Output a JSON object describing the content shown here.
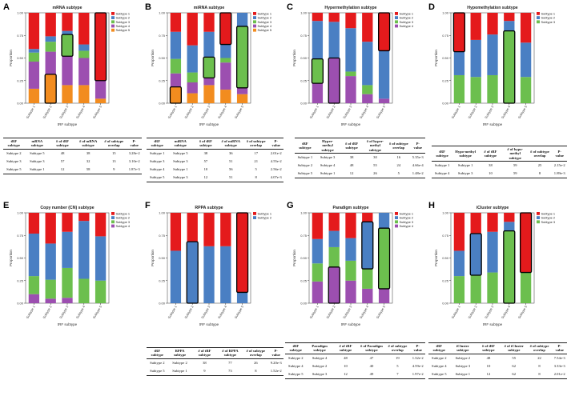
{
  "colors": {
    "Subtype 1": "#e41a1c",
    "Subtype 2": "#4a7fc3",
    "Subtype 3": "#6cbf4e",
    "Subtype 4": "#9c4fb0",
    "Subtype 5": "#f28c1f"
  },
  "chart_data": [
    {
      "letter": "A",
      "type": "bar",
      "stacked": true,
      "title": "mRNA subtype",
      "xlabel": "tRF subtype",
      "ylabel": "Proportion",
      "categories": [
        "Subtype 1",
        "Subtype 2",
        "Subtype 3",
        "Subtype 4",
        "Subtype 5"
      ],
      "yticks": [
        "0.00",
        "0.25",
        "0.50",
        "0.75",
        "1.00"
      ],
      "ylim": [
        0,
        1
      ],
      "series": [
        {
          "name": "Subtype 5",
          "values": [
            0.16,
            0.32,
            0.2,
            0.2,
            0.05
          ]
        },
        {
          "name": "Subtype 4",
          "values": [
            0.3,
            0.25,
            0.32,
            0.3,
            0.2
          ]
        },
        {
          "name": "Subtype 3",
          "values": [
            0.1,
            0.11,
            0.24,
            0.08,
            0.0
          ]
        },
        {
          "name": "Subtype 2",
          "values": [
            0.04,
            0.06,
            0.04,
            0.07,
            0.0
          ]
        },
        {
          "name": "Subtype 1",
          "values": [
            0.4,
            0.26,
            0.2,
            0.35,
            0.75
          ]
        }
      ],
      "highlights": [
        {
          "category": "Subtype 2",
          "series": "Subtype 5"
        },
        {
          "category": "Subtype 3",
          "series": "Subtype 3"
        },
        {
          "category": "Subtype 5",
          "series": "Subtype 1"
        }
      ],
      "legend": [
        "Subtype 1",
        "Subtype 2",
        "Subtype 3",
        "Subtype 4",
        "Subtype 5"
      ],
      "table": {
        "headers": [
          "tRF subtype",
          "mRNA subtype",
          "# of tRF subtype",
          "# of mRNA subtype",
          "# of subtype overlap",
          "P-value"
        ],
        "rows": [
          [
            "Subtype 2",
            "Subtype 5",
            "48",
            "38",
            "15",
            "3.28e-2"
          ],
          [
            "Subtype 3",
            "Subtype 3",
            "57",
            "32",
            "13",
            "3.10e-2"
          ],
          [
            "Subtype 5",
            "Subtype 1",
            "12",
            "58",
            "9",
            "1.87e-3"
          ]
        ]
      }
    },
    {
      "letter": "B",
      "type": "bar",
      "stacked": true,
      "title": "miRNA subtype",
      "xlabel": "tRF subtype",
      "ylabel": "Proportion",
      "categories": [
        "Subtype 1",
        "Subtype 2",
        "Subtype 3",
        "Subtype 4",
        "Subtype 5"
      ],
      "yticks": [
        "0.00",
        "0.25",
        "0.50",
        "0.75",
        "1.00"
      ],
      "ylim": [
        0,
        1
      ],
      "series": [
        {
          "name": "Subtype 5",
          "values": [
            0.18,
            0.11,
            0.2,
            0.15,
            0.1
          ]
        },
        {
          "name": "Subtype 4",
          "values": [
            0.15,
            0.12,
            0.08,
            0.3,
            0.07
          ]
        },
        {
          "name": "Subtype 3",
          "values": [
            0.16,
            0.11,
            0.23,
            0.05,
            0.68
          ]
        },
        {
          "name": "Subtype 2",
          "values": [
            0.3,
            0.3,
            0.28,
            0.15,
            0.15
          ]
        },
        {
          "name": "Subtype 1",
          "values": [
            0.21,
            0.36,
            0.21,
            0.35,
            0.0
          ]
        }
      ],
      "highlights": [
        {
          "category": "Subtype 1",
          "series": "Subtype 5"
        },
        {
          "category": "Subtype 3",
          "series": "Subtype 3"
        },
        {
          "category": "Subtype 4",
          "series": "Subtype 1"
        },
        {
          "category": "Subtype 5",
          "series": "Subtype 3"
        }
      ],
      "legend": [
        "Subtype 1",
        "Subtype 2",
        "Subtype 3",
        "Subtype 4",
        "Subtype 5"
      ],
      "table": {
        "headers": [
          "tRF subtype",
          "miRNA subtype",
          "# of tRF subtype",
          "# of miRNA subtype",
          "# of subtype overlap",
          "P-value"
        ],
        "rows": [
          [
            "Subtype 1",
            "Subtype 5",
            "38",
            "36",
            "17",
            "2.01e-2"
          ],
          [
            "Subtype 3",
            "Subtype 3",
            "57",
            "51",
            "21",
            "4.55e-2"
          ],
          [
            "Subtype 4",
            "Subtype 1",
            "10",
            "56",
            "5",
            "2.56e-2"
          ],
          [
            "Subtype 5",
            "Subtype 3",
            "12",
            "51",
            "8",
            "4.07e-3"
          ]
        ]
      }
    },
    {
      "letter": "C",
      "type": "bar",
      "stacked": true,
      "title": "Hypermethylation subtype",
      "xlabel": "tRF subtype",
      "ylabel": "Proportion",
      "categories": [
        "Subtype 1",
        "Subtype 2",
        "Subtype 3",
        "Subtype 4",
        "Subtype 5"
      ],
      "yticks": [
        "0.00",
        "0.25",
        "0.50",
        "0.75",
        "1.00"
      ],
      "ylim": [
        0,
        1
      ],
      "series": [
        {
          "name": "Subtype 4",
          "values": [
            0.22,
            0.5,
            0.3,
            0.1,
            0.05
          ]
        },
        {
          "name": "Subtype 3",
          "values": [
            0.27,
            0.0,
            0.05,
            0.1,
            0.0
          ]
        },
        {
          "name": "Subtype 2",
          "values": [
            0.42,
            0.4,
            0.48,
            0.48,
            0.53
          ]
        },
        {
          "name": "Subtype 1",
          "values": [
            0.09,
            0.1,
            0.17,
            0.32,
            0.42
          ]
        }
      ],
      "highlights": [
        {
          "category": "Subtype 1",
          "series": "Subtype 3"
        },
        {
          "category": "Subtype 2",
          "series": "Subtype 4"
        },
        {
          "category": "Subtype 5",
          "series": "Subtype 1"
        }
      ],
      "legend": [
        "Subtype 1",
        "Subtype 2",
        "Subtype 3",
        "Subtype 4"
      ],
      "table": {
        "headers": [
          "tRF subtype",
          "Hyper-methyl subtype",
          "# of tRF subtype",
          "# of hyper-methyl subtype",
          "# of subtype overlap",
          "P-value"
        ],
        "rows": [
          [
            "Subtype 1",
            "Subtype 3",
            "38",
            "30",
            "16",
            "5.35e-3"
          ],
          [
            "Subtype 2",
            "Subtype 4",
            "48",
            "55",
            "24",
            "4.66e-4"
          ],
          [
            "Subtype 5",
            "Subtype 1",
            "12",
            "26",
            "5",
            "1.48e-2"
          ]
        ]
      }
    },
    {
      "letter": "D",
      "type": "bar",
      "stacked": true,
      "title": "Hypomethylation subtype",
      "xlabel": "tRF subtype",
      "ylabel": "Proportion",
      "categories": [
        "Subtype 1",
        "Subtype 2",
        "Subtype 3",
        "Subtype 4",
        "Subtype 5"
      ],
      "yticks": [
        "0.00",
        "0.25",
        "0.50",
        "0.75",
        "1.00"
      ],
      "ylim": [
        0,
        1
      ],
      "series": [
        {
          "name": "Subtype 3",
          "values": [
            0.31,
            0.29,
            0.31,
            0.8,
            0.29
          ]
        },
        {
          "name": "Subtype 2",
          "values": [
            0.26,
            0.41,
            0.45,
            0.11,
            0.38
          ]
        },
        {
          "name": "Subtype 1",
          "values": [
            0.43,
            0.3,
            0.24,
            0.09,
            0.33
          ]
        }
      ],
      "highlights": [
        {
          "category": "Subtype 1",
          "series": "Subtype 1"
        },
        {
          "category": "Subtype 4",
          "series": "Subtype 3"
        }
      ],
      "legend": [
        "Subtype 1",
        "Subtype 2",
        "Subtype 3"
      ],
      "table": {
        "headers": [
          "tRF subtype",
          "Hypo-methyl subtype",
          "# of tRF subtype",
          "# of hypo-methyl subtype",
          "# of subtype overlap",
          "P-value"
        ],
        "rows": [
          [
            "Subtype 1",
            "Subtype 1",
            "38",
            "59",
            "25",
            "2.15e-2"
          ],
          [
            "Subtype 4",
            "Subtype 3",
            "10",
            "59",
            "8",
            "1.89e-3"
          ]
        ]
      }
    },
    {
      "letter": "E",
      "type": "bar",
      "stacked": true,
      "title": "Copy number (CN) subtype",
      "xlabel": "tRF subtype",
      "ylabel": "Proportion",
      "categories": [
        "Subtype 1",
        "Subtype 2",
        "Subtype 3",
        "Subtype 4",
        "Subtype 5"
      ],
      "yticks": [
        "0.00",
        "0.25",
        "0.50",
        "0.75",
        "1.00"
      ],
      "ylim": [
        0,
        1
      ],
      "series": [
        {
          "name": "Subtype 4",
          "values": [
            0.1,
            0.05,
            0.06,
            0.0,
            0.0
          ]
        },
        {
          "name": "Subtype 3",
          "values": [
            0.2,
            0.21,
            0.33,
            0.27,
            0.25
          ]
        },
        {
          "name": "Subtype 2",
          "values": [
            0.47,
            0.4,
            0.4,
            0.64,
            0.49
          ]
        },
        {
          "name": "Subtype 1",
          "values": [
            0.23,
            0.34,
            0.21,
            0.09,
            0.26
          ]
        }
      ],
      "highlights": [],
      "legend": [
        "Subtype 1",
        "Subtype 2",
        "Subtype 3",
        "Subtype 4"
      ]
    },
    {
      "letter": "F",
      "type": "bar",
      "stacked": true,
      "title": "RPPA subtype",
      "xlabel": "tRF subtype",
      "ylabel": "Proportion",
      "categories": [
        "Subtype 1",
        "Subtype 2",
        "Subtype 3",
        "Subtype 4",
        "Subtype 5"
      ],
      "yticks": [
        "0.00",
        "0.25",
        "0.50",
        "0.75",
        "1.00"
      ],
      "ylim": [
        0,
        1
      ],
      "series": [
        {
          "name": "Subtype 2",
          "values": [
            0.58,
            0.68,
            0.63,
            0.63,
            0.12
          ]
        },
        {
          "name": "Subtype 1",
          "values": [
            0.42,
            0.32,
            0.37,
            0.37,
            0.88
          ]
        }
      ],
      "highlights": [
        {
          "category": "Subtype 2",
          "series": "Subtype 2"
        },
        {
          "category": "Subtype 5",
          "series": "Subtype 1"
        }
      ],
      "legend": [
        "Subtype 1",
        "Subtype 2"
      ],
      "table": {
        "headers": [
          "tRF subtype",
          "RPPA subtype",
          "# of tRF subtype",
          "# of RPPA subtype",
          "# of subtype overlap",
          "P-value"
        ],
        "rows": [
          [
            "Subtype 2",
            "Subtype 2",
            "38",
            "77",
            "26",
            "9.20e-3"
          ],
          [
            "Subtype 5",
            "Subtype 1",
            "9",
            "73",
            "8",
            "1.52e-2"
          ]
        ]
      }
    },
    {
      "letter": "G",
      "type": "bar",
      "stacked": true,
      "title": "Paradigm subtype",
      "xlabel": "tRF subtype",
      "ylabel": "Proportion",
      "categories": [
        "Subtype 1",
        "Subtype 2",
        "Subtype 3",
        "Subtype 4",
        "Subtype 5"
      ],
      "yticks": [
        "0.00",
        "0.25",
        "0.50",
        "0.75",
        "1.00"
      ],
      "ylim": [
        0,
        1
      ],
      "series": [
        {
          "name": "Subtype 4",
          "values": [
            0.24,
            0.4,
            0.25,
            0.16,
            0.16
          ]
        },
        {
          "name": "Subtype 3",
          "values": [
            0.2,
            0.22,
            0.22,
            0.22,
            0.67
          ]
        },
        {
          "name": "Subtype 2",
          "values": [
            0.27,
            0.18,
            0.25,
            0.52,
            0.17
          ]
        },
        {
          "name": "Subtype 1",
          "values": [
            0.29,
            0.2,
            0.28,
            0.1,
            0.0
          ]
        }
      ],
      "highlights": [
        {
          "category": "Subtype 2",
          "series": "Subtype 4"
        },
        {
          "category": "Subtype 4",
          "series": "Subtype 2"
        },
        {
          "category": "Subtype 5",
          "series": "Subtype 3"
        }
      ],
      "legend": [
        "Subtype 1",
        "Subtype 2",
        "Subtype 3",
        "Subtype 4"
      ],
      "table": {
        "headers": [
          "tRF subtype",
          "Paradigm subtype",
          "# of tRF subtype",
          "# of Paradigm subtype",
          "# of subtype overlap",
          "P-value"
        ],
        "rows": [
          [
            "Subtype 2",
            "Subtype 4",
            "48",
            "47",
            "19",
            "1.32e-2"
          ],
          [
            "Subtype 4",
            "Subtype 2",
            "10",
            "40",
            "5",
            "4.59e-2"
          ],
          [
            "Subtype 5",
            "Subtype 3",
            "12",
            "49",
            "7",
            "1.97e-2"
          ]
        ]
      }
    },
    {
      "letter": "H",
      "type": "bar",
      "stacked": true,
      "title": "iCluster subtype",
      "xlabel": "tRF subtype",
      "ylabel": "Proportion",
      "categories": [
        "Subtype 1",
        "Subtype 2",
        "Subtype 3",
        "Subtype 4",
        "Subtype 5"
      ],
      "yticks": [
        "0.00",
        "0.25",
        "0.50",
        "0.75",
        "1.00"
      ],
      "ylim": [
        0,
        1
      ],
      "series": [
        {
          "name": "Subtype 3",
          "values": [
            0.3,
            0.31,
            0.34,
            0.8,
            0.34
          ]
        },
        {
          "name": "Subtype 2",
          "values": [
            0.28,
            0.46,
            0.45,
            0.1,
            0.0
          ]
        },
        {
          "name": "Subtype 1",
          "values": [
            0.42,
            0.23,
            0.21,
            0.1,
            0.66
          ]
        }
      ],
      "highlights": [
        {
          "category": "Subtype 2",
          "series": "Subtype 2"
        },
        {
          "category": "Subtype 4",
          "series": "Subtype 3"
        },
        {
          "category": "Subtype 5",
          "series": "Subtype 1"
        }
      ],
      "legend": [
        "Subtype 1",
        "Subtype 2",
        "Subtype 3"
      ],
      "table": {
        "headers": [
          "tRF subtype",
          "iCluster subtype",
          "# of tRF subtype",
          "# of iCluster subtype",
          "# of subtype overlap",
          "P-value"
        ],
        "rows": [
          [
            "Subtype 2",
            "Subtype 2",
            "48",
            "55",
            "22",
            "7.54e-3"
          ],
          [
            "Subtype 4",
            "Subtype 3",
            "10",
            "62",
            "8",
            "3.33e-3"
          ],
          [
            "Subtype 5",
            "Subtype 1",
            "12",
            "62",
            "8",
            "2.01e-2"
          ]
        ]
      }
    }
  ]
}
